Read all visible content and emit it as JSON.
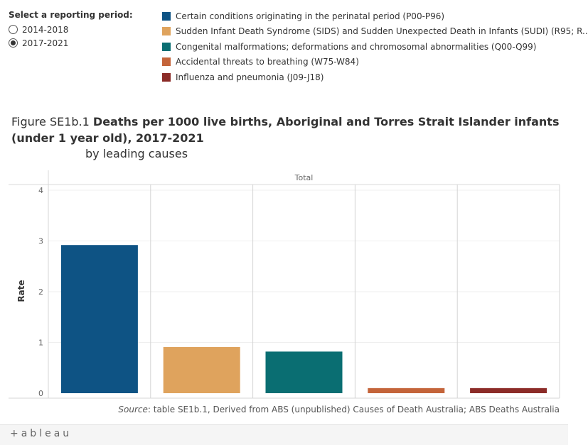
{
  "filter": {
    "title": "Select a reporting period:",
    "options": [
      {
        "label": "2014-2018",
        "selected": false
      },
      {
        "label": "2017-2021",
        "selected": true
      }
    ]
  },
  "legend": [
    {
      "label": "Certain conditions originating in the perinatal period (P00-P96)",
      "color": "#0e5384"
    },
    {
      "label": "Sudden Infant Death Syndrome (SIDS) and Sudden Unexpected Death in Infants (SUDI) (R95; R..",
      "color": "#dfa35d"
    },
    {
      "label": "Congenital malformations; deformations and chromosomal abnormalities (Q00-Q99)",
      "color": "#0a6e72"
    },
    {
      "label": "Accidental threats to breathing (W75-W84)",
      "color": "#c4643a"
    },
    {
      "label": "Influenza and pneumonia (J09-J18)",
      "color": "#8b2b27"
    }
  ],
  "figure": {
    "prefix": "Figure SE1b.1",
    "title": "Deaths per 1000 live births, Aboriginal and Torres Strait Islander infants (under 1 year old),  2017-2021",
    "subtitle": "by leading causes"
  },
  "chart_data": {
    "type": "bar",
    "panel_header": "Total",
    "categories": [
      "Certain conditions originating in the perinatal period (P00-P96)",
      "Sudden Infant Death Syndrome (SIDS) and Sudden Unexpected Death in Infants (SUDI) (R95; R..",
      "Congenital malformations; deformations and chromosomal abnormalities (Q00-Q99)",
      "Accidental threats to breathing (W75-W84)",
      "Influenza and pneumonia (J09-J18)"
    ],
    "values": [
      2.92,
      0.91,
      0.82,
      0.1,
      0.1
    ],
    "colors": [
      "#0e5384",
      "#dfa35d",
      "#0a6e72",
      "#c4643a",
      "#8b2b27"
    ],
    "ylabel": "Rate",
    "ylim": [
      0,
      4.2
    ],
    "yticks": [
      0,
      1,
      2,
      3,
      4
    ],
    "grid": true
  },
  "source": {
    "label": "Source",
    "text": ": table SE1b.1, Derived from ABS (unpublished) Causes of Death Australia; ABS Deaths Australia"
  },
  "footer": {
    "logo": "+ableau"
  }
}
